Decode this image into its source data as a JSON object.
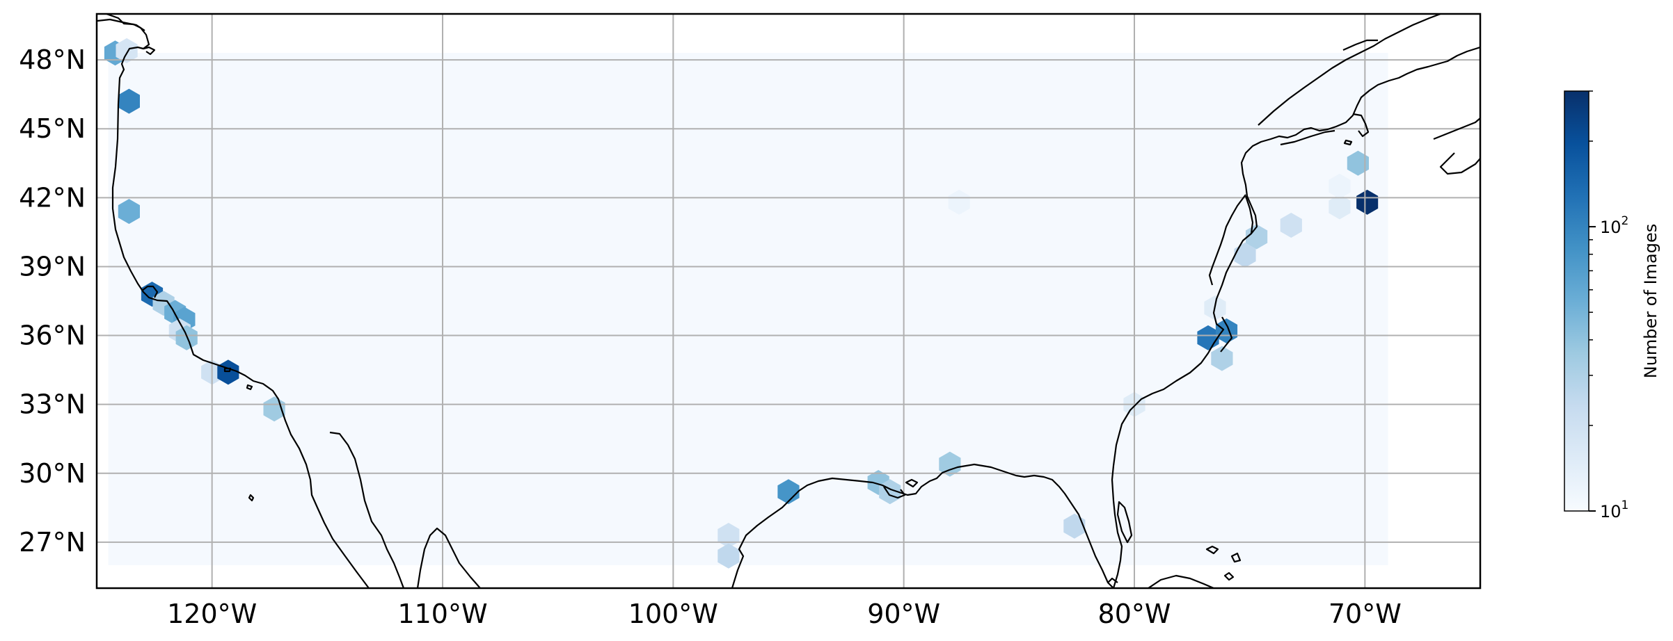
{
  "map": {
    "projection": "plate-carree",
    "extent": {
      "lon": [
        -125,
        -65
      ],
      "lat": [
        25,
        50
      ]
    },
    "gridlines": true,
    "lon_ticks": [
      {
        "lon": -120,
        "label": "120°W"
      },
      {
        "lon": -110,
        "label": "110°W"
      },
      {
        "lon": -100,
        "label": "100°W"
      },
      {
        "lon": -90,
        "label": "90°W"
      },
      {
        "lon": -80,
        "label": "80°W"
      },
      {
        "lon": -70,
        "label": "70°W"
      }
    ],
    "lat_ticks": [
      {
        "lat": 48,
        "label": "48°N"
      },
      {
        "lat": 45,
        "label": "45°N"
      },
      {
        "lat": 42,
        "label": "42°N"
      },
      {
        "lat": 39,
        "label": "39°N"
      },
      {
        "lat": 36,
        "label": "36°N"
      },
      {
        "lat": 33,
        "label": "33°N"
      },
      {
        "lat": 30,
        "label": "30°N"
      },
      {
        "lat": 27,
        "label": "27°N"
      }
    ],
    "background_region": {
      "lon": [
        -124.5,
        -69
      ],
      "lat": [
        26,
        48.3
      ],
      "count": 1
    },
    "hexbins": [
      {
        "lon": -124.2,
        "lat": 48.3,
        "count": 60
      },
      {
        "lon": -123.7,
        "lat": 48.4,
        "count": 18
      },
      {
        "lon": -123.6,
        "lat": 46.2,
        "count": 100
      },
      {
        "lon": -123.6,
        "lat": 41.4,
        "count": 55
      },
      {
        "lon": -122.6,
        "lat": 37.8,
        "count": 140
      },
      {
        "lon": -122.1,
        "lat": 37.4,
        "count": 30
      },
      {
        "lon": -121.6,
        "lat": 37.0,
        "count": 55
      },
      {
        "lon": -121.2,
        "lat": 36.7,
        "count": 65
      },
      {
        "lon": -121.4,
        "lat": 36.2,
        "count": 20
      },
      {
        "lon": -121.1,
        "lat": 35.9,
        "count": 40
      },
      {
        "lon": -120.0,
        "lat": 34.4,
        "count": 20
      },
      {
        "lon": -119.3,
        "lat": 34.4,
        "count": 200
      },
      {
        "lon": -117.3,
        "lat": 32.8,
        "count": 35
      },
      {
        "lon": -97.6,
        "lat": 27.3,
        "count": 20
      },
      {
        "lon": -97.6,
        "lat": 26.4,
        "count": 25
      },
      {
        "lon": -95.0,
        "lat": 29.2,
        "count": 80
      },
      {
        "lon": -91.1,
        "lat": 29.6,
        "count": 40
      },
      {
        "lon": -90.6,
        "lat": 29.2,
        "count": 30
      },
      {
        "lon": -88.0,
        "lat": 30.4,
        "count": 35
      },
      {
        "lon": -87.6,
        "lat": 41.8,
        "count": 12
      },
      {
        "lon": -82.6,
        "lat": 27.7,
        "count": 25
      },
      {
        "lon": -80.0,
        "lat": 33.0,
        "count": 15
      },
      {
        "lon": -76.5,
        "lat": 37.2,
        "count": 15
      },
      {
        "lon": -76.8,
        "lat": 35.9,
        "count": 120
      },
      {
        "lon": -76.0,
        "lat": 36.2,
        "count": 100
      },
      {
        "lon": -76.2,
        "lat": 35.0,
        "count": 30
      },
      {
        "lon": -75.2,
        "lat": 39.5,
        "count": 25
      },
      {
        "lon": -74.7,
        "lat": 40.3,
        "count": 30
      },
      {
        "lon": -73.2,
        "lat": 40.8,
        "count": 20
      },
      {
        "lon": -71.1,
        "lat": 41.6,
        "count": 15
      },
      {
        "lon": -71.1,
        "lat": 42.5,
        "count": 12
      },
      {
        "lon": -70.3,
        "lat": 43.5,
        "count": 40
      },
      {
        "lon": -69.9,
        "lat": 41.8,
        "count": 300
      }
    ]
  },
  "colorbar": {
    "label": "Number of Images",
    "scale": "log",
    "range": [
      10,
      300
    ],
    "ticks": [
      {
        "value": 10,
        "mantissa": "10",
        "exponent": "1"
      },
      {
        "value": 100,
        "mantissa": "10",
        "exponent": "2"
      }
    ],
    "colormap": "Blues",
    "colors": {
      "low": "#f7fbff",
      "high": "#08306b",
      "grid": "#b0b0b0",
      "coast": "#000000"
    }
  }
}
